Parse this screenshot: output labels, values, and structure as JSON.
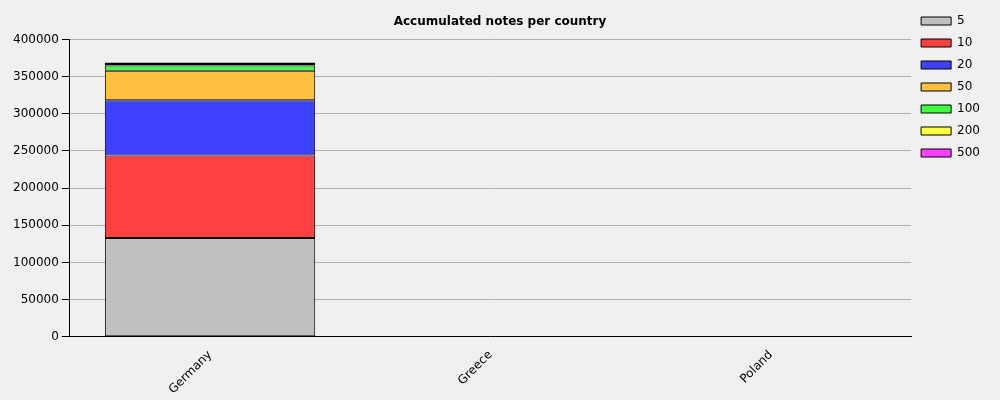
{
  "chart_data": {
    "type": "bar",
    "title": "Accumulated notes per country",
    "categories": [
      "Germany",
      "Greece",
      "Poland"
    ],
    "series": [
      {
        "name": "5",
        "color": "#c0c0c0",
        "values": [
          133000,
          300,
          300
        ]
      },
      {
        "name": "10",
        "color": "#ff4040",
        "values": [
          111000,
          400,
          400
        ]
      },
      {
        "name": "20",
        "color": "#4040ff",
        "values": [
          74000,
          100,
          100
        ]
      },
      {
        "name": "50",
        "color": "#ffc040",
        "values": [
          40000,
          50,
          50
        ]
      },
      {
        "name": "100",
        "color": "#40ff40",
        "values": [
          7000,
          20,
          20
        ]
      },
      {
        "name": "200",
        "color": "#ffff40",
        "values": [
          2000,
          10,
          10
        ]
      },
      {
        "name": "500",
        "color": "#ff40ff",
        "values": [
          2000,
          10,
          10
        ]
      }
    ],
    "ylim": [
      0,
      400000
    ],
    "yticks": [
      0,
      50000,
      100000,
      150000,
      200000,
      250000,
      300000,
      350000,
      400000
    ],
    "grid": true,
    "stacked": true,
    "legend": "top-right"
  }
}
